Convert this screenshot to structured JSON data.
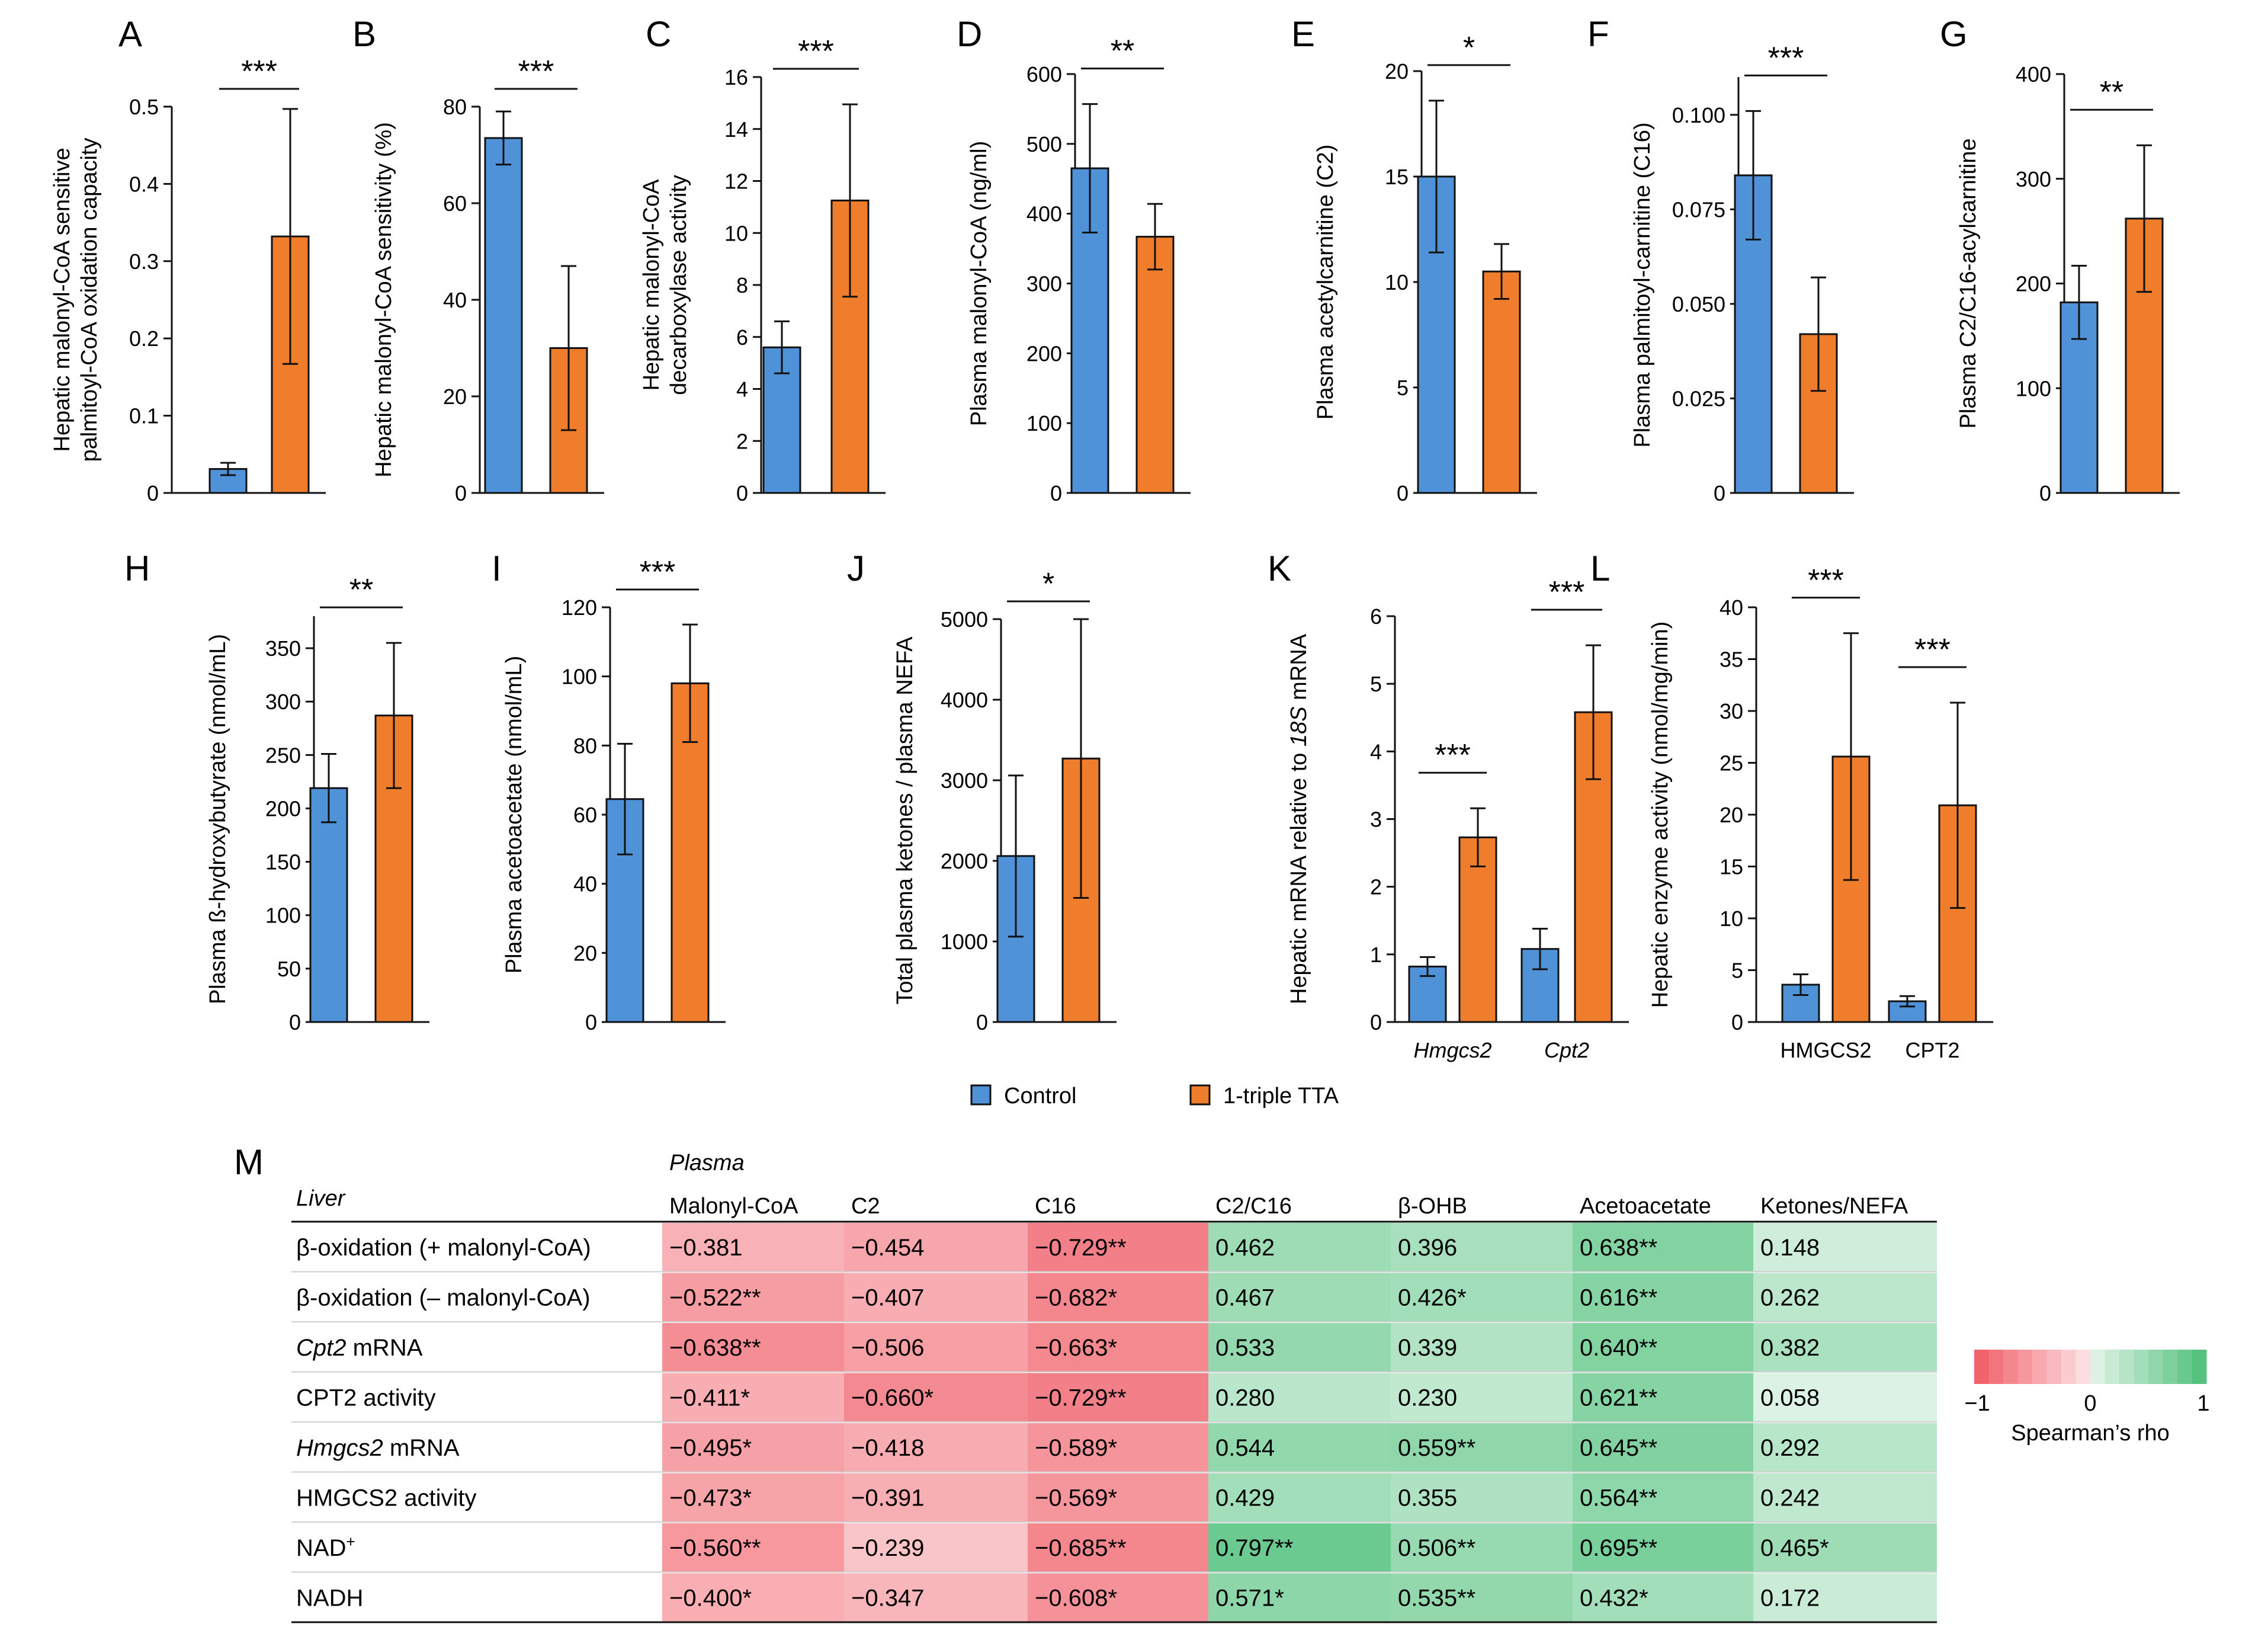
{
  "colors": {
    "control": "#4f92d8",
    "tta": "#ef7d2c",
    "neg": "#f05a64",
    "pos": "#4cbf78",
    "axis": "#111111"
  },
  "legend": {
    "control": "Control",
    "tta": "1-triple TTA"
  },
  "chart_data": [
    {
      "id": "A",
      "type": "bar",
      "panel": "A",
      "ylabel": [
        "Hepatic malonyl-CoA sensitive",
        "palmitoyl-CoA oxidation capacity"
      ],
      "ylim": [
        0,
        0.5
      ],
      "ticks": [
        "0",
        "0.1",
        "0.2",
        "0.3",
        "0.4",
        "0.5"
      ],
      "tickvals": [
        0,
        0.1,
        0.2,
        0.3,
        0.4,
        0.5
      ],
      "categories": [
        ""
      ],
      "series": [
        {
          "name": "Control",
          "values": [
            0.031
          ],
          "err": [
            0.008
          ]
        },
        {
          "name": "1-triple TTA",
          "values": [
            0.332
          ],
          "err": [
            0.165
          ]
        }
      ],
      "sig": [
        "***"
      ]
    },
    {
      "id": "B",
      "type": "bar",
      "panel": "B",
      "ylabel": [
        "Hepatic malonyl-CoA sensitivity (%)"
      ],
      "ylim": [
        0,
        80
      ],
      "ticks": [
        "0",
        "20",
        "40",
        "60",
        "80"
      ],
      "tickvals": [
        0,
        20,
        40,
        60,
        80
      ],
      "categories": [
        ""
      ],
      "series": [
        {
          "name": "Control",
          "values": [
            73.5
          ],
          "err": [
            5.5
          ]
        },
        {
          "name": "1-triple TTA",
          "values": [
            30
          ],
          "err": [
            17
          ]
        }
      ],
      "sig": [
        "***"
      ]
    },
    {
      "id": "C",
      "type": "bar",
      "panel": "C",
      "ylabel": [
        "Hepatic malonyl-CoA",
        "decarboxylase activity"
      ],
      "ylim": [
        0,
        16
      ],
      "ticks": [
        "0",
        "2",
        "4",
        "6",
        "8",
        "10",
        "12",
        "14",
        "16"
      ],
      "tickvals": [
        0,
        2,
        4,
        6,
        8,
        10,
        12,
        14,
        16
      ],
      "categories": [
        ""
      ],
      "series": [
        {
          "name": "Control",
          "values": [
            5.6
          ],
          "err": [
            1.0
          ]
        },
        {
          "name": "1-triple TTA",
          "values": [
            11.25
          ],
          "err": [
            3.7
          ]
        }
      ],
      "sig": [
        "***"
      ]
    },
    {
      "id": "D",
      "type": "bar",
      "panel": "D",
      "ylabel": [
        "Plasma malonyl-CoA (ng/ml)"
      ],
      "ylim": [
        0,
        600
      ],
      "ticks": [
        "0",
        "100",
        "200",
        "300",
        "400",
        "500",
        "600"
      ],
      "tickvals": [
        0,
        100,
        200,
        300,
        400,
        500,
        600
      ],
      "categories": [
        ""
      ],
      "series": [
        {
          "name": "Control",
          "values": [
            465
          ],
          "err": [
            92
          ]
        },
        {
          "name": "1-triple TTA",
          "values": [
            367
          ],
          "err": [
            47
          ]
        }
      ],
      "sig": [
        "**"
      ]
    },
    {
      "id": "E",
      "type": "bar",
      "panel": "E",
      "ylabel": [
        "Plasma acetylcarnitine (C2)"
      ],
      "ylim": [
        0,
        20
      ],
      "ticks": [
        "0",
        "5",
        "10",
        "15",
        "20"
      ],
      "tickvals": [
        0,
        5,
        10,
        15,
        20
      ],
      "categories": [
        ""
      ],
      "series": [
        {
          "name": "Control",
          "values": [
            15
          ],
          "err": [
            3.6
          ]
        },
        {
          "name": "1-triple TTA",
          "values": [
            10.5
          ],
          "err": [
            1.3
          ]
        }
      ],
      "sig": [
        "*"
      ]
    },
    {
      "id": "F",
      "type": "bar",
      "panel": "F",
      "ylabel": [
        "Plasma palmitoyl-carnitine (C16)"
      ],
      "ylim": [
        0,
        0.11
      ],
      "ticks": [
        "0",
        "0.025",
        "0.050",
        "0.075",
        "0.100"
      ],
      "tickvals": [
        0,
        0.025,
        0.05,
        0.075,
        0.1
      ],
      "categories": [
        ""
      ],
      "series": [
        {
          "name": "Control",
          "values": [
            0.084
          ],
          "err": [
            0.017
          ]
        },
        {
          "name": "1-triple TTA",
          "values": [
            0.042
          ],
          "err": [
            0.015
          ]
        }
      ],
      "sig": [
        "***"
      ]
    },
    {
      "id": "G",
      "type": "bar",
      "panel": "G",
      "ylabel": [
        "Plasma C2/C16-acylcarnitine"
      ],
      "ylim": [
        0,
        400
      ],
      "ticks": [
        "0",
        "100",
        "200",
        "300",
        "400"
      ],
      "tickvals": [
        0,
        100,
        200,
        300,
        400
      ],
      "categories": [
        ""
      ],
      "series": [
        {
          "name": "Control",
          "values": [
            182
          ],
          "err": [
            35
          ]
        },
        {
          "name": "1-triple TTA",
          "values": [
            262
          ],
          "err": [
            70
          ]
        }
      ],
      "sig": [
        "**"
      ]
    },
    {
      "id": "H",
      "type": "bar",
      "panel": "H",
      "ylabel": [
        "Plasma ß-hydroxybutyrate (nmol/mL)"
      ],
      "ylim": [
        0,
        380
      ],
      "ticks": [
        "0",
        "50",
        "100",
        "150",
        "200",
        "250",
        "300",
        "350"
      ],
      "tickvals": [
        0,
        50,
        100,
        150,
        200,
        250,
        300,
        350
      ],
      "categories": [
        ""
      ],
      "series": [
        {
          "name": "Control",
          "values": [
            219
          ],
          "err": [
            32
          ]
        },
        {
          "name": "1-triple TTA",
          "values": [
            287
          ],
          "err": [
            68
          ]
        }
      ],
      "sig": [
        "**"
      ]
    },
    {
      "id": "I",
      "type": "bar",
      "panel": "I",
      "ylabel": [
        "Plasma acetoacetate (nmol/mL)"
      ],
      "ylim": [
        0,
        120
      ],
      "ticks": [
        "0",
        "20",
        "40",
        "60",
        "80",
        "100",
        "120"
      ],
      "tickvals": [
        0,
        20,
        40,
        60,
        80,
        100,
        120
      ],
      "categories": [
        ""
      ],
      "series": [
        {
          "name": "Control",
          "values": [
            64.5
          ],
          "err": [
            16
          ]
        },
        {
          "name": "1-triple TTA",
          "values": [
            98
          ],
          "err": [
            17
          ]
        }
      ],
      "sig": [
        "***"
      ]
    },
    {
      "id": "J",
      "type": "bar",
      "panel": "J",
      "ylabel": [
        "Total plasma ketones / plasma NEFA"
      ],
      "ylim": [
        0,
        5000
      ],
      "ticks": [
        "0",
        "1000",
        "2000",
        "3000",
        "4000",
        "5000"
      ],
      "tickvals": [
        0,
        1000,
        2000,
        3000,
        4000,
        5000
      ],
      "categories": [
        ""
      ],
      "series": [
        {
          "name": "Control",
          "values": [
            2060
          ],
          "err": [
            1000
          ]
        },
        {
          "name": "1-triple TTA",
          "values": [
            3270
          ],
          "err": [
            1730
          ]
        }
      ],
      "sig": [
        "*"
      ]
    },
    {
      "id": "K",
      "type": "bar",
      "panel": "K",
      "ylabel": [
        "Hepatic mRNA relative to 18S mRNA"
      ],
      "ylim": [
        0,
        6
      ],
      "ticks": [
        "0",
        "1",
        "2",
        "3",
        "4",
        "5",
        "6"
      ],
      "tickvals": [
        0,
        1,
        2,
        3,
        4,
        5,
        6
      ],
      "categories": [
        "Hmgcs2",
        "Cpt2"
      ],
      "catItalic": true,
      "series": [
        {
          "name": "Control",
          "values": [
            0.82,
            1.08
          ],
          "err": [
            0.14,
            0.3
          ]
        },
        {
          "name": "1-triple TTA",
          "values": [
            2.73,
            4.58
          ],
          "err": [
            0.43,
            0.99
          ]
        }
      ],
      "sig": [
        "***",
        "***"
      ]
    },
    {
      "id": "L",
      "type": "bar",
      "panel": "L",
      "ylabel": [
        "Hepatic enzyme activity (nmol/mg/min)"
      ],
      "ylim": [
        0,
        40
      ],
      "ticks": [
        "0",
        "5",
        "10",
        "15",
        "20",
        "25",
        "30",
        "35",
        "40"
      ],
      "tickvals": [
        0,
        5,
        10,
        15,
        20,
        25,
        30,
        35,
        40
      ],
      "categories": [
        "HMGCS2",
        "CPT2"
      ],
      "catItalic": false,
      "series": [
        {
          "name": "Control",
          "values": [
            3.6,
            2.0
          ],
          "err": [
            1.0,
            0.5
          ]
        },
        {
          "name": "1-triple TTA",
          "values": [
            25.6,
            20.9
          ],
          "err": [
            11.9,
            9.9
          ]
        }
      ],
      "sig": [
        "***",
        "***"
      ]
    },
    {
      "id": "M",
      "type": "heatmap",
      "panel": "M",
      "col_group_label": "Plasma",
      "row_group_label": "Liver",
      "columns": [
        "Malonyl-CoA",
        "C2",
        "C16",
        "C2/C16",
        "β-OHB",
        "Acetoacetate",
        "Ketones/NEFA"
      ],
      "rows": [
        {
          "label": "β-oxidation (+ malonyl-CoA)",
          "values": [
            -0.381,
            -0.454,
            -0.729,
            0.462,
            0.396,
            0.638,
            0.148
          ],
          "labels": [
            "−0.381",
            "−0.454",
            "−0.729**",
            "0.462",
            "0.396",
            "0.638**",
            "0.148"
          ]
        },
        {
          "label": "β-oxidation (– malonyl-CoA)",
          "values": [
            -0.522,
            -0.407,
            -0.682,
            0.467,
            0.426,
            0.616,
            0.262
          ],
          "labels": [
            "−0.522**",
            "−0.407",
            "−0.682*",
            "0.467",
            "0.426*",
            "0.616**",
            "0.262"
          ]
        },
        {
          "label": "Cpt2",
          "label_suffix": " mRNA",
          "italic": true,
          "values": [
            -0.638,
            -0.506,
            -0.663,
            0.533,
            0.339,
            0.64,
            0.382
          ],
          "labels": [
            "−0.638**",
            "−0.506",
            "−0.663*",
            "0.533",
            "0.339",
            "0.640**",
            "0.382"
          ]
        },
        {
          "label": "CPT2 activity",
          "values": [
            -0.411,
            -0.66,
            -0.729,
            0.28,
            0.23,
            0.621,
            0.058
          ],
          "labels": [
            "−0.411*",
            "−0.660*",
            "−0.729**",
            "0.280",
            "0.230",
            "0.621**",
            "0.058"
          ]
        },
        {
          "label": "Hmgcs2",
          "label_suffix": " mRNA",
          "italic": true,
          "values": [
            -0.495,
            -0.418,
            -0.589,
            0.544,
            0.559,
            0.645,
            0.292
          ],
          "labels": [
            "−0.495*",
            "−0.418",
            "−0.589*",
            "0.544",
            "0.559**",
            "0.645**",
            "0.292"
          ]
        },
        {
          "label": "HMGCS2 activity",
          "values": [
            -0.473,
            -0.391,
            -0.569,
            0.429,
            0.355,
            0.564,
            0.242
          ],
          "labels": [
            "−0.473*",
            "−0.391",
            "−0.569*",
            "0.429",
            "0.355",
            "0.564**",
            "0.242"
          ]
        },
        {
          "label": "NAD",
          "label_sup": "+",
          "values": [
            -0.56,
            -0.239,
            -0.685,
            0.797,
            0.506,
            0.695,
            0.465
          ],
          "labels": [
            "−0.560**",
            "−0.239",
            "−0.685**",
            "0.797**",
            "0.506**",
            "0.695**",
            "0.465*"
          ]
        },
        {
          "label": "NADH",
          "values": [
            -0.4,
            -0.347,
            -0.608,
            0.571,
            0.535,
            0.432,
            0.172
          ],
          "labels": [
            "−0.400*",
            "−0.347",
            "−0.608*",
            "0.571*",
            "0.535**",
            "0.432*",
            "0.172"
          ]
        }
      ],
      "scale": {
        "min": -1,
        "max": 1,
        "ticks": [
          "−1",
          "0",
          "1"
        ],
        "label": "Spearman’s rho"
      }
    }
  ]
}
